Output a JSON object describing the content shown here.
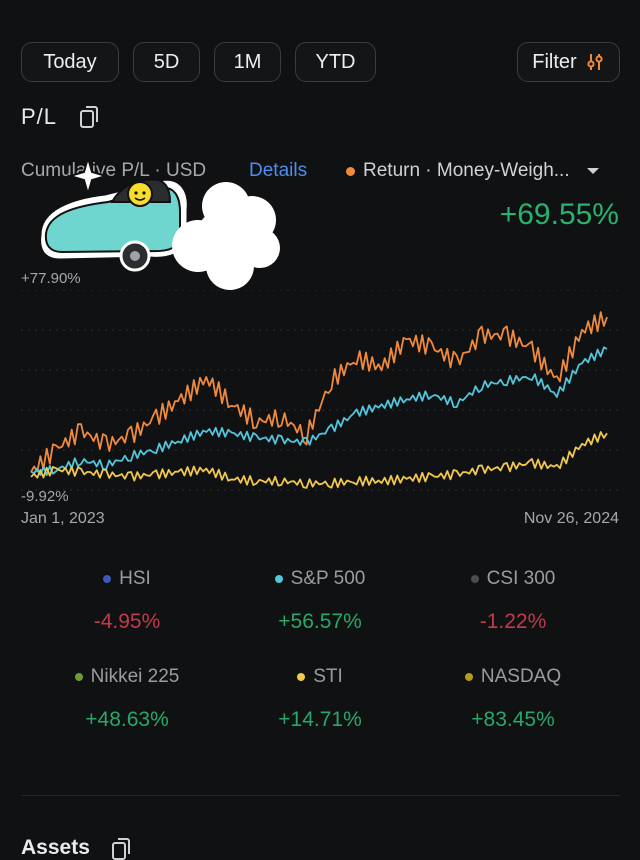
{
  "range_tabs": [
    "Today",
    "5D",
    "1M",
    "YTD"
  ],
  "filter_label": "Filter",
  "section_title": "P/L",
  "cumulative_label": "Cumulative P/L · USD",
  "details_link": "Details",
  "return_dropdown": "Return · Money-Weigh...",
  "return_value": "+69.55%",
  "colors": {
    "return": "#f08a3c",
    "sp500": "#52c6dc",
    "sti": "#f2c94c",
    "hsi": "#3b5bb8",
    "csi300": "#4a4c50",
    "nikkei225": "#6e9a3a",
    "nasdaq": "#b89a20"
  },
  "chart_data": {
    "type": "line",
    "y_top_label": "+77.90%",
    "y_bottom_label": "-9.92%",
    "ylim": [
      -9.92,
      77.9
    ],
    "x_start_label": "Jan 1, 2023",
    "x_end_label": "Nov 26, 2024",
    "x": [
      0,
      1,
      2,
      3,
      4,
      5,
      6,
      7,
      8,
      9,
      10,
      11,
      12,
      13,
      14,
      15,
      16,
      17,
      18,
      19,
      20,
      21,
      22,
      23
    ],
    "series": [
      {
        "key": "return",
        "values": [
          -2,
          8,
          16,
          10,
          14,
          22,
          30,
          39,
          28,
          20,
          22,
          14,
          38,
          48,
          44,
          56,
          53,
          46,
          58,
          58,
          52,
          38,
          60,
          66
        ]
      },
      {
        "key": "sp500",
        "values": [
          -2,
          -1,
          3,
          1,
          5,
          8,
          12,
          16,
          15,
          13,
          12,
          11,
          17,
          24,
          27,
          30,
          32,
          28,
          36,
          38,
          40,
          32,
          46,
          52
        ]
      },
      {
        "key": "sti",
        "values": [
          -4,
          -1,
          -2,
          -3,
          -4,
          -3,
          -2,
          -1,
          -5,
          -6,
          -6,
          -7,
          -7,
          -6,
          -6,
          -5,
          -4,
          -3,
          -1,
          0,
          2,
          0,
          10,
          15
        ]
      }
    ]
  },
  "indices": [
    {
      "name": "HSI",
      "value": "-4.95%",
      "sign": "neg",
      "color_key": "hsi"
    },
    {
      "name": "S&P 500",
      "value": "+56.57%",
      "sign": "pos",
      "color_key": "sp500"
    },
    {
      "name": "CSI 300",
      "value": "-1.22%",
      "sign": "neg",
      "color_key": "csi300"
    },
    {
      "name": "Nikkei 225",
      "value": "+48.63%",
      "sign": "pos",
      "color_key": "nikkei225"
    },
    {
      "name": "STI",
      "value": "+14.71%",
      "sign": "pos",
      "color_key": "sti"
    },
    {
      "name": "NASDAQ",
      "value": "+83.45%",
      "sign": "pos",
      "color_key": "nasdaq"
    }
  ],
  "assets_title": "Assets"
}
